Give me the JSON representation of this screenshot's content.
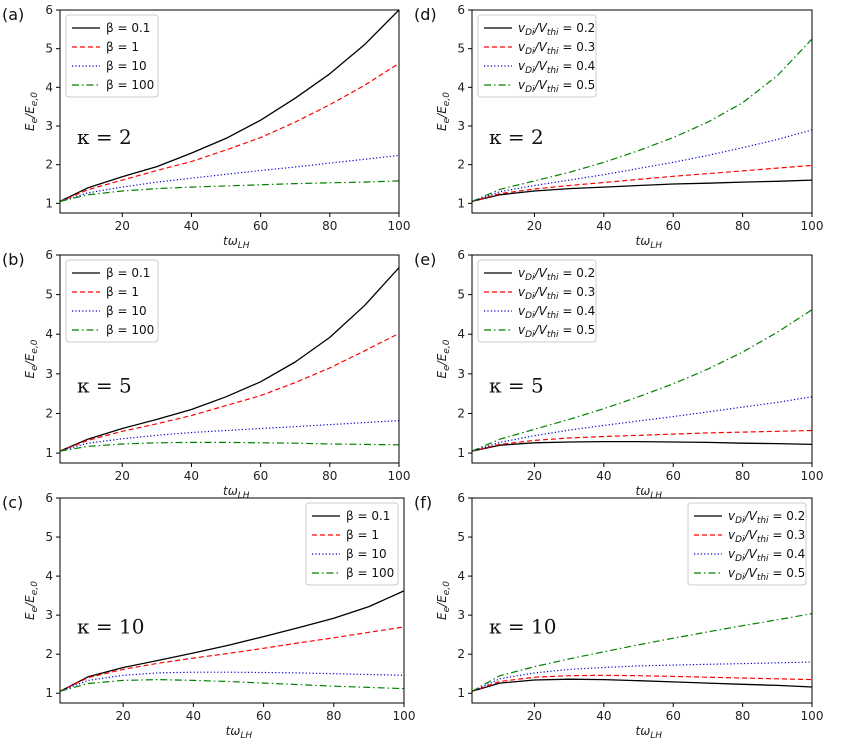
{
  "chart_data": [
    {
      "panel": "(a)",
      "type": "line",
      "annotation": "κ = 2",
      "xlabel": "tω_LH",
      "ylabel": "E_e/E_e,0",
      "xlim": [
        2,
        100
      ],
      "ylim": [
        0.75,
        6
      ],
      "xticks": [
        20,
        40,
        60,
        80,
        100
      ],
      "yticks": [
        1,
        2,
        3,
        4,
        5,
        6
      ],
      "legend_loc": "upper-left",
      "x": [
        2,
        10,
        20,
        30,
        40,
        50,
        60,
        70,
        80,
        90,
        100
      ],
      "series": [
        {
          "name": "β = 0.1",
          "color": "#000000",
          "dash": "solid",
          "values": [
            1.05,
            1.4,
            1.69,
            1.95,
            2.3,
            2.68,
            3.15,
            3.72,
            4.35,
            5.1,
            6.0
          ]
        },
        {
          "name": "β = 1",
          "color": "#ff0000",
          "dash": "dashed",
          "values": [
            1.05,
            1.35,
            1.6,
            1.85,
            2.08,
            2.38,
            2.7,
            3.1,
            3.55,
            4.05,
            4.62
          ]
        },
        {
          "name": "β = 10",
          "color": "#0000cc",
          "dash": "dotted",
          "values": [
            1.05,
            1.27,
            1.42,
            1.55,
            1.65,
            1.75,
            1.85,
            1.94,
            2.04,
            2.14,
            2.24
          ]
        },
        {
          "name": "β = 100",
          "color": "#008000",
          "dash": "dashdot",
          "values": [
            1.05,
            1.22,
            1.32,
            1.38,
            1.42,
            1.45,
            1.48,
            1.51,
            1.53,
            1.55,
            1.58
          ]
        }
      ]
    },
    {
      "panel": "(b)",
      "type": "line",
      "annotation": "κ = 5",
      "xlabel": "tω_LH",
      "ylabel": "E_e/E_e,0",
      "xlim": [
        2,
        100
      ],
      "ylim": [
        0.75,
        6
      ],
      "xticks": [
        20,
        40,
        60,
        80,
        100
      ],
      "yticks": [
        1,
        2,
        3,
        4,
        5,
        6
      ],
      "legend_loc": "upper-left",
      "x": [
        2,
        10,
        20,
        30,
        40,
        50,
        60,
        70,
        80,
        90,
        100
      ],
      "series": [
        {
          "name": "β = 0.1",
          "color": "#000000",
          "dash": "solid",
          "values": [
            1.05,
            1.35,
            1.62,
            1.85,
            2.1,
            2.42,
            2.8,
            3.3,
            3.92,
            4.72,
            5.68
          ]
        },
        {
          "name": "β = 1",
          "color": "#ff0000",
          "dash": "dashed",
          "values": [
            1.05,
            1.32,
            1.55,
            1.74,
            1.95,
            2.2,
            2.45,
            2.78,
            3.15,
            3.58,
            4.02
          ]
        },
        {
          "name": "β = 10",
          "color": "#0000cc",
          "dash": "dotted",
          "values": [
            1.05,
            1.25,
            1.36,
            1.45,
            1.52,
            1.57,
            1.62,
            1.67,
            1.72,
            1.77,
            1.82
          ]
        },
        {
          "name": "β = 100",
          "color": "#008000",
          "dash": "dashdot",
          "values": [
            1.05,
            1.17,
            1.23,
            1.26,
            1.27,
            1.27,
            1.26,
            1.25,
            1.23,
            1.22,
            1.21
          ]
        }
      ]
    },
    {
      "panel": "(c)",
      "type": "line",
      "annotation": "κ = 10",
      "xlabel": "tω_LH",
      "ylabel": "E_e/E_e,0",
      "xlim": [
        2,
        100
      ],
      "ylim": [
        0.75,
        6
      ],
      "xticks": [
        20,
        40,
        60,
        80,
        100
      ],
      "yticks": [
        1,
        2,
        3,
        4,
        5,
        6
      ],
      "legend_loc": "upper-right",
      "x": [
        2,
        10,
        20,
        30,
        40,
        50,
        60,
        70,
        80,
        90,
        100
      ],
      "series": [
        {
          "name": "β = 0.1",
          "color": "#000000",
          "dash": "solid",
          "values": [
            1.05,
            1.42,
            1.66,
            1.84,
            2.03,
            2.23,
            2.45,
            2.68,
            2.92,
            3.22,
            3.62
          ]
        },
        {
          "name": "β = 1",
          "color": "#ff0000",
          "dash": "dashed",
          "values": [
            1.05,
            1.4,
            1.61,
            1.77,
            1.9,
            2.02,
            2.15,
            2.29,
            2.42,
            2.56,
            2.7
          ]
        },
        {
          "name": "β = 10",
          "color": "#0000cc",
          "dash": "dotted",
          "values": [
            1.05,
            1.33,
            1.46,
            1.52,
            1.54,
            1.54,
            1.53,
            1.52,
            1.5,
            1.48,
            1.46
          ]
        },
        {
          "name": "β = 100",
          "color": "#008000",
          "dash": "dashdot",
          "values": [
            1.05,
            1.25,
            1.33,
            1.35,
            1.33,
            1.3,
            1.26,
            1.22,
            1.18,
            1.15,
            1.12
          ]
        }
      ]
    },
    {
      "panel": "(d)",
      "type": "line",
      "annotation": "κ = 2",
      "xlabel": "tω_LH",
      "ylabel": "E_e/E_e,0",
      "xlim": [
        2,
        100
      ],
      "ylim": [
        0.75,
        6
      ],
      "xticks": [
        20,
        40,
        60,
        80,
        100
      ],
      "yticks": [
        1,
        2,
        3,
        4,
        5,
        6
      ],
      "legend_loc": "upper-left",
      "x": [
        2,
        10,
        20,
        30,
        40,
        50,
        60,
        70,
        80,
        90,
        100
      ],
      "series": [
        {
          "name": "v_Di/V_thi = 0.2",
          "color": "#000000",
          "dash": "solid",
          "values": [
            1.05,
            1.22,
            1.32,
            1.38,
            1.42,
            1.46,
            1.5,
            1.52,
            1.55,
            1.57,
            1.6
          ]
        },
        {
          "name": "v_Di/V_thi = 0.3",
          "color": "#ff0000",
          "dash": "dashed",
          "values": [
            1.05,
            1.25,
            1.37,
            1.46,
            1.54,
            1.62,
            1.7,
            1.77,
            1.84,
            1.91,
            1.98
          ]
        },
        {
          "name": "v_Di/V_thi = 0.4",
          "color": "#0000cc",
          "dash": "dotted",
          "values": [
            1.05,
            1.3,
            1.46,
            1.6,
            1.74,
            1.9,
            2.06,
            2.24,
            2.44,
            2.65,
            2.9
          ]
        },
        {
          "name": "v_Di/V_thi = 0.5",
          "color": "#008000",
          "dash": "dashdot",
          "values": [
            1.05,
            1.36,
            1.58,
            1.8,
            2.06,
            2.36,
            2.7,
            3.1,
            3.6,
            4.3,
            5.25
          ]
        }
      ]
    },
    {
      "panel": "(e)",
      "type": "line",
      "annotation": "κ = 5",
      "xlabel": "tω_LH",
      "ylabel": "E_e/E_e,0",
      "xlim": [
        2,
        100
      ],
      "ylim": [
        0.75,
        6
      ],
      "xticks": [
        20,
        40,
        60,
        80,
        100
      ],
      "yticks": [
        1,
        2,
        3,
        4,
        5,
        6
      ],
      "legend_loc": "upper-left",
      "x": [
        2,
        10,
        20,
        30,
        40,
        50,
        60,
        70,
        80,
        90,
        100
      ],
      "series": [
        {
          "name": "v_Di/V_thi = 0.2",
          "color": "#000000",
          "dash": "solid",
          "values": [
            1.05,
            1.2,
            1.26,
            1.28,
            1.29,
            1.29,
            1.28,
            1.27,
            1.25,
            1.24,
            1.22
          ]
        },
        {
          "name": "v_Di/V_thi = 0.3",
          "color": "#ff0000",
          "dash": "dashed",
          "values": [
            1.05,
            1.22,
            1.32,
            1.38,
            1.42,
            1.45,
            1.48,
            1.51,
            1.53,
            1.55,
            1.57
          ]
        },
        {
          "name": "v_Di/V_thi = 0.4",
          "color": "#0000cc",
          "dash": "dotted",
          "values": [
            1.05,
            1.27,
            1.44,
            1.58,
            1.7,
            1.81,
            1.92,
            2.04,
            2.16,
            2.28,
            2.42
          ]
        },
        {
          "name": "v_Di/V_thi = 0.5",
          "color": "#008000",
          "dash": "dashdot",
          "values": [
            1.05,
            1.35,
            1.6,
            1.85,
            2.12,
            2.42,
            2.75,
            3.12,
            3.55,
            4.05,
            4.62
          ]
        }
      ]
    },
    {
      "panel": "(f)",
      "type": "line",
      "annotation": "κ = 10",
      "xlabel": "tω_LH",
      "ylabel": "E_e/E_e,0",
      "xlim": [
        2,
        100
      ],
      "ylim": [
        0.75,
        6
      ],
      "xticks": [
        20,
        40,
        60,
        80,
        100
      ],
      "yticks": [
        1,
        2,
        3,
        4,
        5,
        6
      ],
      "legend_loc": "upper-right",
      "x": [
        2,
        10,
        20,
        30,
        40,
        50,
        60,
        70,
        80,
        90,
        100
      ],
      "series": [
        {
          "name": "v_Di/V_thi = 0.2",
          "color": "#000000",
          "dash": "solid",
          "values": [
            1.05,
            1.26,
            1.34,
            1.36,
            1.35,
            1.32,
            1.29,
            1.26,
            1.23,
            1.2,
            1.16
          ]
        },
        {
          "name": "v_Di/V_thi = 0.3",
          "color": "#ff0000",
          "dash": "dashed",
          "values": [
            1.05,
            1.3,
            1.41,
            1.45,
            1.46,
            1.45,
            1.43,
            1.41,
            1.39,
            1.37,
            1.35
          ]
        },
        {
          "name": "v_Di/V_thi = 0.4",
          "color": "#0000cc",
          "dash": "dotted",
          "values": [
            1.05,
            1.37,
            1.52,
            1.61,
            1.66,
            1.7,
            1.72,
            1.74,
            1.76,
            1.78,
            1.8
          ]
        },
        {
          "name": "v_Di/V_thi = 0.5",
          "color": "#008000",
          "dash": "dashdot",
          "values": [
            1.05,
            1.45,
            1.68,
            1.88,
            2.06,
            2.24,
            2.41,
            2.57,
            2.73,
            2.88,
            3.04
          ]
        }
      ]
    }
  ]
}
